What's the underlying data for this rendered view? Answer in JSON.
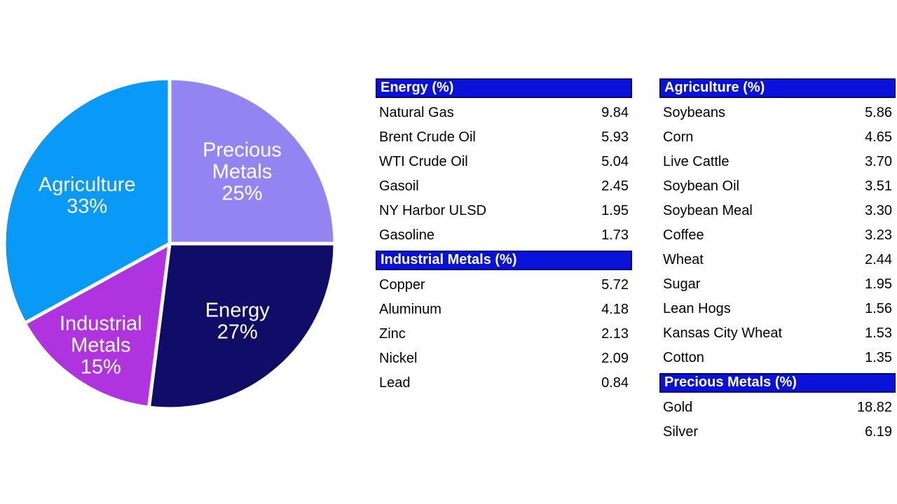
{
  "figure": {
    "background": "#FFFFFF",
    "text_color": "#000000"
  },
  "styles": {
    "header_bg": "#0812D8",
    "header_text": "#FFFFFF",
    "header_border": "#000078",
    "pie_label_color": "#FFFFFF",
    "pie_separator_color": "#FFFFFF"
  },
  "chart_data": [
    {
      "type": "pie",
      "direction": "clockwise",
      "start_angle_deg": 0,
      "unit": "%",
      "legend": "none",
      "label_color": "#FFFFFF",
      "separator_color": "#FFFFFF",
      "slices": [
        {
          "name": "Precious Metals",
          "value": 25,
          "color": "#9384F2",
          "label_lines": [
            "Precious",
            "Metals",
            "25%"
          ],
          "label_r": 0.62
        },
        {
          "name": "Energy",
          "value": 27,
          "color": "#100D68",
          "label_lines": [
            "Energy",
            "27%"
          ],
          "label_r": 0.62
        },
        {
          "name": "Industrial Metals",
          "value": 15,
          "color": "#AF34DF",
          "label_lines": [
            "Industrial",
            "Metals",
            "15%"
          ],
          "label_r": 0.74
        },
        {
          "name": "Agriculture",
          "value": 33,
          "color": "#0999F7",
          "label_lines": [
            "Agriculture",
            "33%"
          ],
          "label_r": 0.58
        }
      ]
    },
    {
      "type": "table",
      "title": "Energy (%)",
      "rows": [
        [
          "Natural Gas",
          "9.84"
        ],
        [
          "Brent Crude Oil",
          "5.93"
        ],
        [
          "WTI Crude Oil",
          "5.04"
        ],
        [
          "Gasoil",
          "2.45"
        ],
        [
          "NY Harbor ULSD",
          "1.95"
        ],
        [
          "Gasoline",
          "1.73"
        ]
      ]
    },
    {
      "type": "table",
      "title": "Industrial Metals (%)",
      "rows": [
        [
          "Copper",
          "5.72"
        ],
        [
          "Aluminum",
          "4.18"
        ],
        [
          "Zinc",
          "2.13"
        ],
        [
          "Nickel",
          "2.09"
        ],
        [
          "Lead",
          "0.84"
        ]
      ]
    },
    {
      "type": "table",
      "title": "Agriculture (%)",
      "rows": [
        [
          "Soybeans",
          "5.86"
        ],
        [
          "Corn",
          "4.65"
        ],
        [
          "Live Cattle",
          "3.70"
        ],
        [
          "Soybean Oil",
          "3.51"
        ],
        [
          "Soybean Meal",
          "3.30"
        ],
        [
          "Coffee",
          "3.23"
        ],
        [
          "Wheat",
          "2.44"
        ],
        [
          "Sugar",
          "1.95"
        ],
        [
          "Lean Hogs",
          "1.56"
        ],
        [
          "Kansas City Wheat",
          "1.53"
        ],
        [
          "Cotton",
          "1.35"
        ]
      ]
    },
    {
      "type": "table",
      "title": "Precious Metals (%)",
      "rows": [
        [
          "Gold",
          "18.82"
        ],
        [
          "Silver",
          "6.19"
        ]
      ]
    }
  ]
}
